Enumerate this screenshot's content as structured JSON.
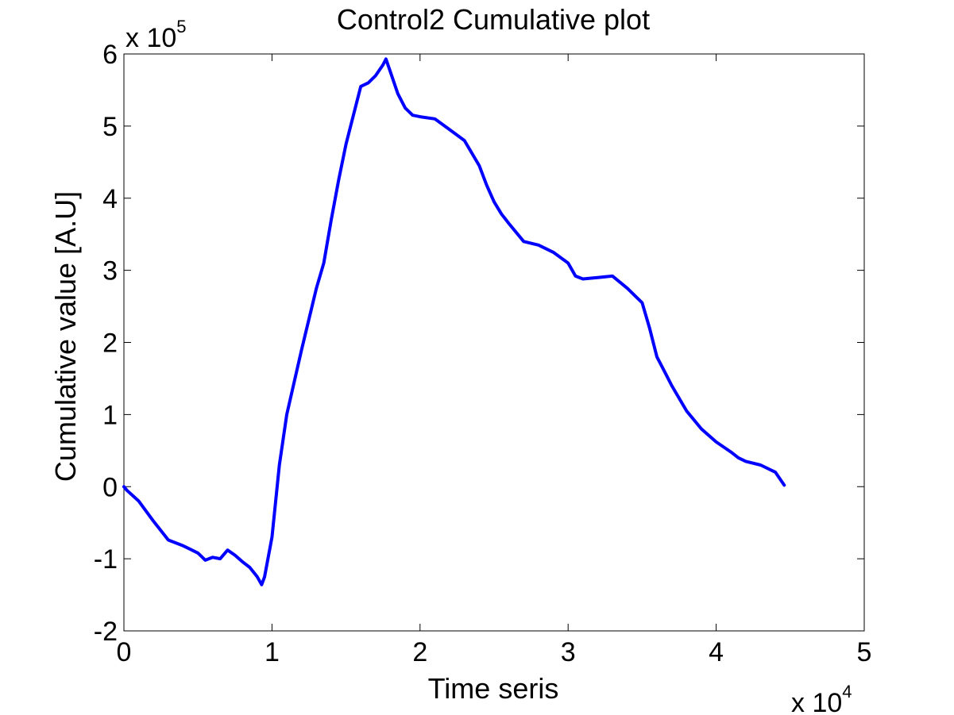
{
  "chart_data": {
    "type": "line",
    "title": "Control2 Cumulative plot",
    "xlabel": "Time seris",
    "ylabel": "Cumulative value [A.U]",
    "xlim": [
      0,
      50000
    ],
    "ylim": [
      -200000,
      600000
    ],
    "x_ticks": [
      0,
      1,
      2,
      3,
      4,
      5
    ],
    "y_ticks": [
      -2,
      -1,
      0,
      1,
      2,
      3,
      4,
      5,
      6
    ],
    "x_tick_labels": [
      "0",
      "1",
      "2",
      "3",
      "4",
      "5"
    ],
    "y_tick_labels": [
      "-2",
      "-1",
      "0",
      "1",
      "2",
      "3",
      "4",
      "5",
      "6"
    ],
    "x_multiplier": {
      "base": "x 10",
      "exponent": "4"
    },
    "y_multiplier": {
      "base": "x 10",
      "exponent": "5"
    },
    "grid": false,
    "line_color": "#0000ff",
    "series": [
      {
        "x": [
          0,
          200,
          1000,
          2000,
          3000,
          4000,
          4500,
          5000,
          5500,
          6000,
          6500,
          7000,
          7500,
          8000,
          8500,
          9000,
          9300,
          9500,
          10000,
          10500,
          11000,
          12000,
          13000,
          13500,
          14000,
          14500,
          15000,
          15500,
          16000,
          16500,
          17000,
          17500,
          17700,
          18000,
          18500,
          19000,
          19500,
          20000,
          21000,
          22000,
          23000,
          24000,
          24500,
          25000,
          25500,
          26000,
          27000,
          28000,
          29000,
          30000,
          30500,
          31000,
          32000,
          33000,
          34000,
          35000,
          35500,
          36000,
          36500,
          37000,
          38000,
          39000,
          40000,
          41000,
          41500,
          42000,
          43000,
          44000,
          44600
        ],
        "y": [
          0,
          -5000,
          -20000,
          -48000,
          -74000,
          -82000,
          -87000,
          -92000,
          -102000,
          -98000,
          -100000,
          -88000,
          -95000,
          -104000,
          -112000,
          -125000,
          -136000,
          -125000,
          -70000,
          30000,
          100000,
          190000,
          275000,
          310000,
          370000,
          425000,
          475000,
          515000,
          555000,
          560000,
          570000,
          585000,
          593000,
          575000,
          545000,
          525000,
          515000,
          513000,
          510000,
          495000,
          480000,
          445000,
          418000,
          395000,
          378000,
          365000,
          340000,
          335000,
          325000,
          310000,
          292000,
          288000,
          290000,
          292000,
          275000,
          255000,
          220000,
          180000,
          160000,
          140000,
          105000,
          80000,
          62000,
          48000,
          40000,
          35000,
          30000,
          20000,
          2000
        ]
      }
    ]
  }
}
